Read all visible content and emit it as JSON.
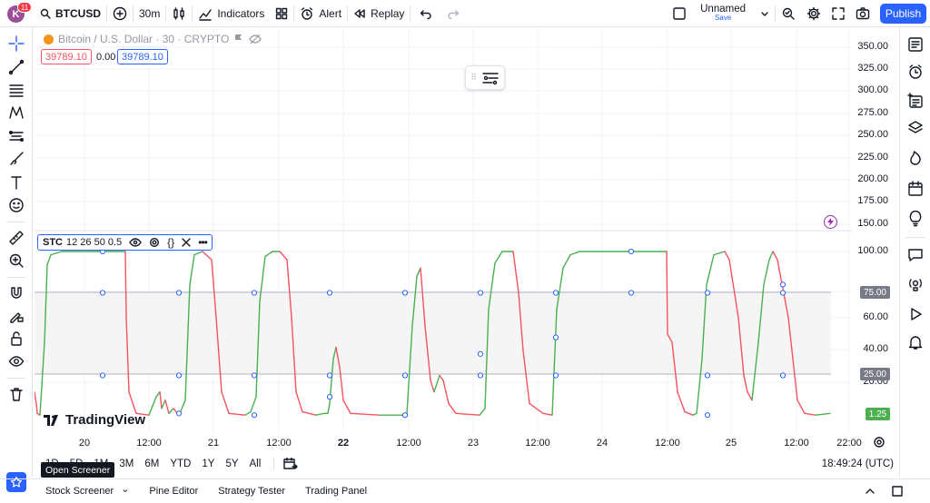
{
  "header": {
    "avatar_letter": "K",
    "notifications": "11",
    "symbol": "BTCUSD",
    "interval": "30m",
    "indicators_label": "Indicators",
    "alert_label": "Alert",
    "replay_label": "Replay",
    "layout_name": "Unnamed",
    "layout_save": "Save",
    "publish_label": "Publish"
  },
  "legend": {
    "title": "Bitcoin / U.S. Dollar · 30 · CRYPTO",
    "bid": "39789.10",
    "spread": "0.00",
    "ask": "39789.10"
  },
  "indicator": {
    "name": "STC",
    "params": "12 26 50 0.5",
    "color_up": "#4caf50",
    "color_down": "#f7525f"
  },
  "price_axis": [
    "350.00",
    "325.00",
    "300.00",
    "275.00",
    "250.00",
    "225.00",
    "200.00",
    "175.00",
    "150.00",
    "100.00",
    "80.00",
    "60.00",
    "40.00",
    "20.00"
  ],
  "axis_tags": {
    "upper": "75.00",
    "lower": "25.00",
    "current": "1.25"
  },
  "time_axis": [
    "20",
    "12:00",
    "21",
    "12:00",
    "22",
    "12:00",
    "23",
    "12:00",
    "24",
    "12:00",
    "25",
    "12:00",
    "22:00"
  ],
  "range_buttons": [
    "1D",
    "5D",
    "1M",
    "3M",
    "6M",
    "YTD",
    "1Y",
    "5Y",
    "All"
  ],
  "clock": "18:49:24 (UTC)",
  "tooltip": "Open Screener",
  "bottom_tabs": [
    "Stock Screener",
    "Pine Editor",
    "Strategy Tester",
    "Trading Panel"
  ],
  "watermark": "TradingView",
  "chart_data": {
    "type": "line",
    "title": "STC 12 26 50 0.5",
    "ylim": [
      0,
      100
    ],
    "bands": [
      25,
      75
    ],
    "x": [
      "20",
      "12:00",
      "21",
      "12:00",
      "22",
      "12:00",
      "23",
      "12:00",
      "24",
      "12:00",
      "25",
      "12:00",
      "22:00"
    ],
    "series": [
      {
        "values": [
          [
            0,
            15
          ],
          [
            2,
            8
          ],
          [
            3,
            2
          ],
          [
            6,
            1
          ],
          [
            11,
            45
          ],
          [
            14,
            92
          ],
          [
            18,
            98
          ],
          [
            30,
            100
          ],
          [
            68,
            100
          ],
          [
            74,
            100
          ],
          [
            100,
            100
          ],
          [
            101,
            60
          ],
          [
            104,
            15
          ],
          [
            112,
            2
          ],
          [
            126,
            1
          ],
          [
            134,
            12
          ],
          [
            138,
            15
          ],
          [
            140,
            5
          ],
          [
            144,
            10
          ],
          [
            148,
            2
          ],
          [
            153,
            5
          ],
          [
            156,
            3
          ],
          [
            160,
            2
          ],
          [
            166,
            10
          ],
          [
            171,
            80
          ],
          [
            176,
            98
          ],
          [
            185,
            100
          ],
          [
            195,
            95
          ],
          [
            200,
            60
          ],
          [
            206,
            15
          ],
          [
            214,
            2
          ],
          [
            232,
            1
          ],
          [
            238,
            3
          ],
          [
            244,
            12
          ],
          [
            248,
            70
          ],
          [
            254,
            97
          ],
          [
            262,
            100
          ],
          [
            270,
            100
          ],
          [
            278,
            95
          ],
          [
            283,
            60
          ],
          [
            288,
            15
          ],
          [
            295,
            3
          ],
          [
            310,
            1
          ],
          [
            319,
            2
          ],
          [
            323,
            2
          ],
          [
            325,
            8
          ],
          [
            329,
            35
          ],
          [
            332,
            42
          ],
          [
            336,
            30
          ],
          [
            340,
            10
          ],
          [
            348,
            2
          ],
          [
            380,
            1
          ],
          [
            405,
            1
          ],
          [
            410,
            2
          ],
          [
            416,
            55
          ],
          [
            421,
            85
          ],
          [
            425,
            90
          ],
          [
            430,
            55
          ],
          [
            436,
            22
          ],
          [
            440,
            15
          ],
          [
            446,
            25
          ],
          [
            450,
            22
          ],
          [
            456,
            8
          ],
          [
            464,
            2
          ],
          [
            490,
            1
          ],
          [
            496,
            5
          ],
          [
            500,
            65
          ],
          [
            507,
            93
          ],
          [
            515,
            100
          ],
          [
            527,
            100
          ],
          [
            533,
            75
          ],
          [
            538,
            40
          ],
          [
            545,
            8
          ],
          [
            560,
            2
          ],
          [
            570,
            1
          ],
          [
            575,
            65
          ],
          [
            582,
            90
          ],
          [
            590,
            98
          ],
          [
            600,
            100
          ],
          [
            696,
            100
          ],
          [
            697,
            50
          ],
          [
            702,
            45
          ],
          [
            708,
            15
          ],
          [
            716,
            3
          ],
          [
            725,
            1
          ],
          [
            729,
            2
          ],
          [
            735,
            35
          ],
          [
            740,
            80
          ],
          [
            748,
            98
          ],
          [
            760,
            100
          ],
          [
            765,
            95
          ],
          [
            775,
            60
          ],
          [
            781,
            25
          ],
          [
            785,
            15
          ],
          [
            790,
            10
          ],
          [
            797,
            45
          ],
          [
            803,
            80
          ],
          [
            809,
            95
          ],
          [
            813,
            100
          ],
          [
            818,
            95
          ],
          [
            830,
            60
          ],
          [
            840,
            10
          ],
          [
            848,
            2
          ],
          [
            860,
            1
          ],
          [
            876,
            2
          ]
        ]
      }
    ]
  }
}
